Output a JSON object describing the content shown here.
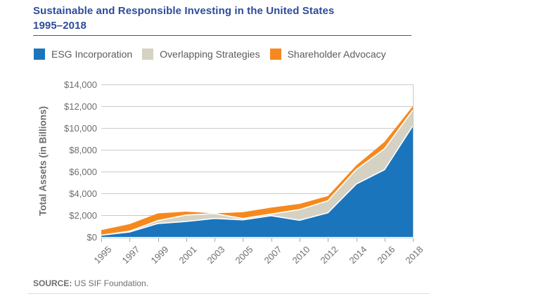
{
  "title": {
    "line1": "Sustainable and Responsible Investing in the United States",
    "line2": "1995–2018"
  },
  "legend": [
    {
      "label": "ESG Incorporation",
      "color": "#1B75BC"
    },
    {
      "label": "Overlapping Strategies",
      "color": "#D5D2C3"
    },
    {
      "label": "Shareholder Advocacy",
      "color": "#F6891E"
    }
  ],
  "source": {
    "prefix": "SOURCE:",
    "text": " US SIF Foundation."
  },
  "chart_data": {
    "type": "area",
    "stacked": true,
    "title": "Sustainable and Responsible Investing in the United States 1995–2018",
    "ylabel": "Total Assets (in Billions)",
    "xlabel": "",
    "categories": [
      "1995",
      "1997",
      "1999",
      "2001",
      "2003",
      "2005",
      "2007",
      "2010",
      "2012",
      "2014",
      "2016",
      "2018"
    ],
    "series": [
      {
        "name": "ESG Incorporation",
        "color": "#1B75BC",
        "values": [
          160,
          450,
          1230,
          1420,
          1700,
          1570,
          1950,
          1530,
          2210,
          4850,
          6170,
          10200
        ]
      },
      {
        "name": "Overlapping Strategies",
        "color": "#D5D2C3",
        "values": [
          0,
          80,
          270,
          590,
          440,
          120,
          150,
          980,
          1110,
          1340,
          1930,
          1440
        ]
      },
      {
        "name": "Shareholder Advocacy",
        "color": "#F6891E",
        "values": [
          470,
          650,
          660,
          310,
          20,
          590,
          590,
          520,
          430,
          380,
          630,
          360
        ]
      }
    ],
    "stack_totals": [
      630,
      1180,
      2160,
      2320,
      2160,
      2280,
      2690,
      3030,
      3750,
      6570,
      8730,
      12000
    ],
    "ylim": [
      0,
      14000
    ],
    "ytick_step": 2000,
    "ytick_labels": [
      "$0",
      "$2,000",
      "$4,000",
      "$6,000",
      "$8,000",
      "$10,000",
      "$12,000",
      "$14,000"
    ],
    "grid": "horizontal",
    "legend_position": "top"
  }
}
